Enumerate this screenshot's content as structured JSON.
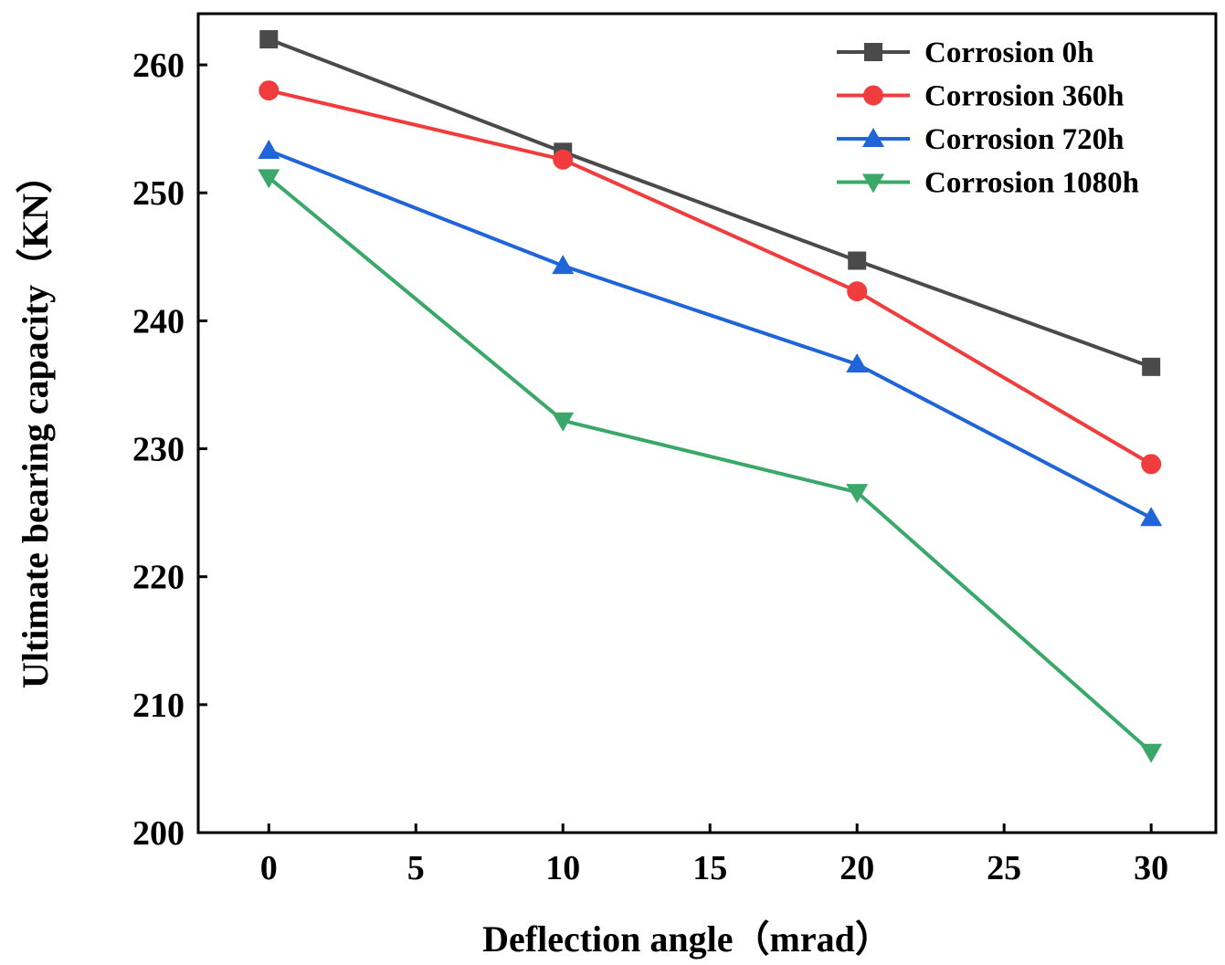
{
  "chart_data": {
    "type": "line",
    "title": "",
    "xlabel": "Deflection angle（mrad）",
    "ylabel": "Ultimate bearing capacity（KN）",
    "xlim": [
      -2.4,
      32.2
    ],
    "ylim": [
      200,
      264
    ],
    "xticks": [
      0,
      5,
      10,
      15,
      20,
      25,
      30
    ],
    "yticks": [
      200,
      210,
      220,
      230,
      240,
      250,
      260
    ],
    "x": [
      0,
      10,
      20,
      30
    ],
    "legend_position": "top-right",
    "series": [
      {
        "name": "Corrosion 0h",
        "color": "#4a4a4a",
        "marker": "square",
        "values": [
          262.0,
          253.2,
          244.7,
          236.4
        ]
      },
      {
        "name": "Corrosion 360h",
        "color": "#f03c3c",
        "marker": "circle",
        "values": [
          258.0,
          252.6,
          242.3,
          228.8
        ]
      },
      {
        "name": "Corrosion 720h",
        "color": "#1f64d8",
        "marker": "triangle-up",
        "values": [
          253.3,
          244.3,
          236.6,
          224.6
        ]
      },
      {
        "name": "Corrosion 1080h",
        "color": "#3aa868",
        "marker": "triangle-down",
        "values": [
          251.2,
          232.2,
          226.6,
          206.3
        ]
      }
    ]
  }
}
